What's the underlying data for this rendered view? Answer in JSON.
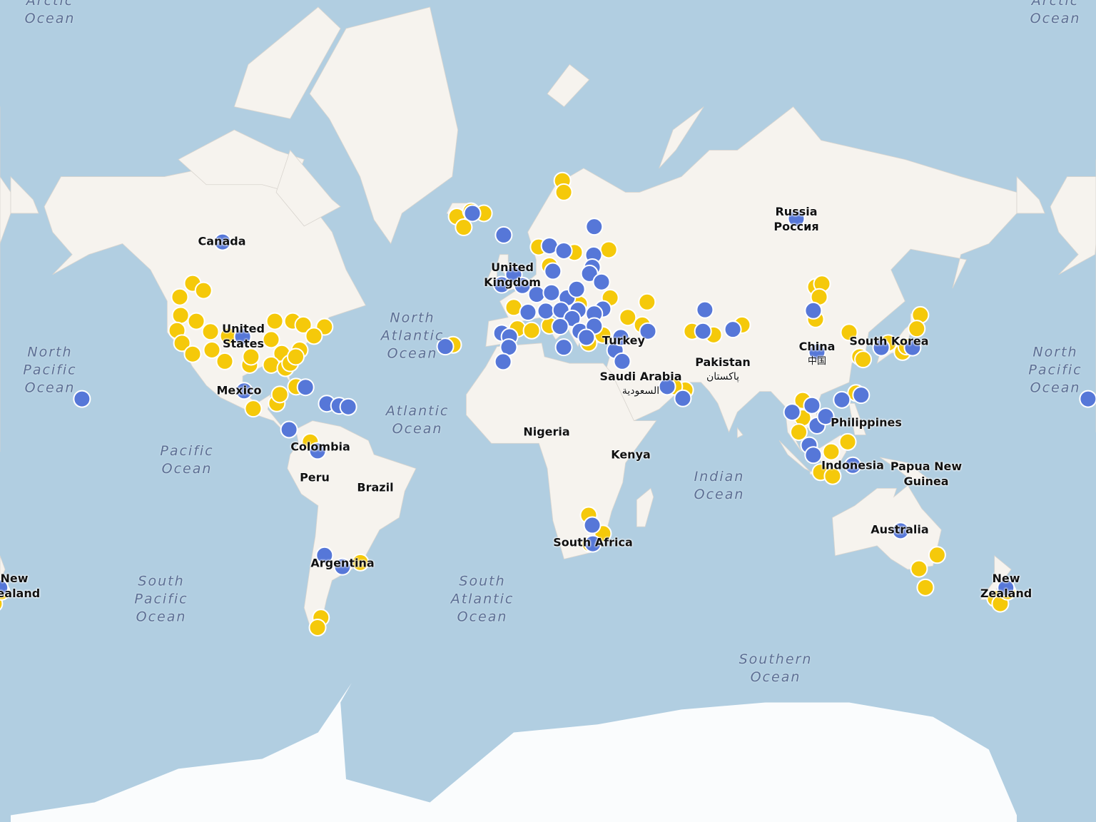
{
  "map": {
    "colors": {
      "ocean": "#b1cee1",
      "land": "#f6f3ee",
      "antarctica": "#fafcfd",
      "marker_blue": "#5677d8",
      "marker_yellow": "#f5c90a",
      "marker_stroke": "#ffffff"
    },
    "projection": "web-mercator",
    "ocean_labels": {
      "arctic_left": [
        "Arctic",
        "Ocean"
      ],
      "arctic_right": [
        "Arctic",
        "Ocean"
      ],
      "north_pacific_left": [
        "North",
        "Pacific",
        "Ocean"
      ],
      "north_pacific_right": [
        "North",
        "Pacific",
        "Ocean"
      ],
      "north_atlantic": [
        "North",
        "Atlantic",
        "Ocean"
      ],
      "atlantic": [
        "Atlantic",
        "Ocean"
      ],
      "pacific": [
        "Pacific",
        "Ocean"
      ],
      "south_pacific": [
        "South",
        "Pacific",
        "Ocean"
      ],
      "south_atlantic": [
        "South",
        "Atlantic",
        "Ocean"
      ],
      "indian": [
        "Indian",
        "Ocean"
      ],
      "southern": [
        "Southern",
        "Ocean"
      ]
    },
    "country_labels": {
      "canada": [
        "Canada"
      ],
      "united_states": [
        "United",
        "States"
      ],
      "mexico": [
        "Mexico"
      ],
      "colombia": [
        "Colombia"
      ],
      "peru": [
        "Peru"
      ],
      "brazil": [
        "Brazil"
      ],
      "argentina": [
        "Argentina"
      ],
      "united_kingdom": [
        "United",
        "Kingdom"
      ],
      "nigeria": [
        "Nigeria"
      ],
      "kenya": [
        "Kenya"
      ],
      "south_africa": [
        "South Africa"
      ],
      "turkey": [
        "Turkey"
      ],
      "saudi_arabia": [
        "Saudi Arabia",
        "السعودية"
      ],
      "pakistan": [
        "Pakistan",
        "پاکستان"
      ],
      "russia": [
        "Russia",
        "Россия"
      ],
      "china": [
        "China",
        "中国"
      ],
      "south_korea": [
        "South Korea"
      ],
      "philippines": [
        "Philippines"
      ],
      "indonesia": [
        "Indonesia"
      ],
      "papua_new_guinea": [
        "Papua New",
        "Guinea"
      ],
      "australia": [
        "Australia"
      ],
      "new_zealand": [
        "New",
        "Zealand"
      ],
      "new_zealand_wrap": [
        "New",
        "Zealand"
      ]
    },
    "markers_yellow": [
      [
        52.1,
        -114.9
      ],
      [
        50.5,
        -111
      ],
      [
        49,
        -119.5
      ],
      [
        44.5,
        -119.2
      ],
      [
        40.5,
        -120.5
      ],
      [
        37,
        -118.7
      ],
      [
        33.8,
        -114.9
      ],
      [
        43,
        -113.6
      ],
      [
        40.2,
        -108.5
      ],
      [
        35,
        -108
      ],
      [
        31.6,
        -103.4
      ],
      [
        39,
        -102.1
      ],
      [
        38,
        -86.8
      ],
      [
        43,
        -85.5
      ],
      [
        43,
        -79.1
      ],
      [
        42,
        -75.3
      ],
      [
        41.5,
        -67.7
      ],
      [
        39,
        -71.5
      ],
      [
        34,
        -83
      ],
      [
        35,
        -76.6
      ],
      [
        30.5,
        -94.5
      ],
      [
        30.5,
        -86.8
      ],
      [
        29.5,
        -81.7
      ],
      [
        31,
        -80
      ],
      [
        33,
        -78
      ],
      [
        33,
        -94
      ],
      [
        18,
        -84.8
      ],
      [
        16.2,
        -93.2
      ],
      [
        21,
        -83.7
      ],
      [
        23.6,
        -77.9
      ],
      [
        69.5,
        17.4
      ],
      [
        68,
        17.9
      ],
      [
        59.4,
        8.9
      ],
      [
        58.9,
        34
      ],
      [
        55.8,
        12.8
      ],
      [
        58.4,
        21.7
      ],
      [
        46.5,
        0
      ],
      [
        41,
        1.3
      ],
      [
        40.5,
        6.4
      ],
      [
        41.8,
        12.8
      ],
      [
        47.3,
        23.5
      ],
      [
        48.8,
        34.5
      ],
      [
        47.8,
        47.7
      ],
      [
        44,
        40.8
      ],
      [
        42,
        46
      ],
      [
        39.3,
        31.9
      ],
      [
        37,
        26.8
      ],
      [
        39.3,
        71.5
      ],
      [
        40.3,
        63.8
      ],
      [
        42,
        81.7
      ],
      [
        22.5,
        61.3
      ],
      [
        23.6,
        57.4
      ],
      [
        64.5,
        -20.4
      ],
      [
        62.8,
        -17.9
      ],
      [
        65,
        -10.7
      ],
      [
        65.3,
        -15.3
      ],
      [
        36.5,
        -21.7
      ],
      [
        51.3,
        108
      ],
      [
        52,
        110.3
      ],
      [
        49,
        109.3
      ],
      [
        43.5,
        108
      ],
      [
        40,
        120
      ],
      [
        33,
        123.8
      ],
      [
        32.2,
        125
      ],
      [
        44.6,
        145.5
      ],
      [
        41,
        144.2
      ],
      [
        34.4,
        139.1
      ],
      [
        37,
        134
      ],
      [
        36,
        140.5
      ],
      [
        21.5,
        122.5
      ],
      [
        13,
        103.4
      ],
      [
        8,
        102
      ],
      [
        1,
        113.6
      ],
      [
        4.5,
        119.5
      ],
      [
        -6.3,
        109.8
      ],
      [
        -7.7,
        114.1
      ],
      [
        19,
        103.4
      ],
      [
        4.5,
        -72.8
      ],
      [
        -36,
        -54.9
      ],
      [
        -50.3,
        -69
      ],
      [
        -52.5,
        -70.2
      ],
      [
        -21.2,
        26.8
      ],
      [
        -27.2,
        31.9
      ],
      [
        -30.4,
        27.3
      ],
      [
        -33.8,
        151.5
      ],
      [
        -37.8,
        145
      ],
      [
        -42.9,
        147.3
      ],
      [
        -45.7,
        172.3
      ],
      [
        -47,
        174.1
      ],
      [
        -44,
        176.7
      ]
    ],
    "markers_blue": [
      [
        60.3,
        -104.2
      ],
      [
        19.5,
        -154.5
      ],
      [
        38.8,
        -97
      ],
      [
        22.2,
        -96.5
      ],
      [
        23.4,
        -74.5
      ],
      [
        17.9,
        -66.9
      ],
      [
        17.2,
        -62.5
      ],
      [
        16.8,
        -59.2
      ],
      [
        8.9,
        -80.4
      ],
      [
        1.3,
        -70.2
      ],
      [
        -33.9,
        -67.7
      ],
      [
        -37.2,
        -61.3
      ],
      [
        36,
        -24.5
      ],
      [
        65,
        -14.8
      ],
      [
        61.5,
        -3.6
      ],
      [
        59.6,
        12.8
      ],
      [
        58.7,
        17.9
      ],
      [
        62.9,
        28.8
      ],
      [
        57.9,
        28.6
      ],
      [
        55.5,
        28.1
      ],
      [
        54.2,
        27.1
      ],
      [
        52.4,
        31.4
      ],
      [
        54,
        0
      ],
      [
        51.8,
        -4.3
      ],
      [
        51.6,
        3.1
      ],
      [
        54.7,
        14
      ],
      [
        49.6,
        8.2
      ],
      [
        50,
        13.5
      ],
      [
        48.8,
        19.1
      ],
      [
        50.8,
        22.5
      ],
      [
        45.3,
        5.1
      ],
      [
        45.6,
        11.5
      ],
      [
        45.8,
        16.9
      ],
      [
        45.8,
        23
      ],
      [
        46.1,
        31.9
      ],
      [
        44.9,
        28.8
      ],
      [
        43.7,
        20.9
      ],
      [
        41.6,
        16.6
      ],
      [
        40.3,
        23.7
      ],
      [
        41.7,
        28.8
      ],
      [
        39.8,
        -4.3
      ],
      [
        38.8,
        -1.5
      ],
      [
        35.8,
        -1.8
      ],
      [
        31.5,
        -3.8
      ],
      [
        35.8,
        17.9
      ],
      [
        38.6,
        26
      ],
      [
        34.9,
        36.3
      ],
      [
        31.6,
        38.8
      ],
      [
        38.6,
        38.3
      ],
      [
        40.3,
        48
      ],
      [
        45.9,
        68.4
      ],
      [
        40.3,
        67.7
      ],
      [
        40.8,
        78.4
      ],
      [
        23.6,
        54.9
      ],
      [
        19.7,
        60.5
      ],
      [
        64.2,
        101.1
      ],
      [
        45.7,
        107.2
      ],
      [
        34.4,
        108.5
      ],
      [
        15,
        99.6
      ],
      [
        17.3,
        106.7
      ],
      [
        10.3,
        108.5
      ],
      [
        13.5,
        111.6
      ],
      [
        19.2,
        117.4
      ],
      [
        20.8,
        124.3
      ],
      [
        35.7,
        131.5
      ],
      [
        35.7,
        142.7
      ],
      [
        3.3,
        105.7
      ],
      [
        -0.2,
        107.2
      ],
      [
        -3.9,
        121.3
      ],
      [
        -26.3,
        138.4
      ],
      [
        -43,
        176.1
      ],
      [
        -24.5,
        28.1
      ],
      [
        -30.4,
        28.3
      ]
    ]
  }
}
